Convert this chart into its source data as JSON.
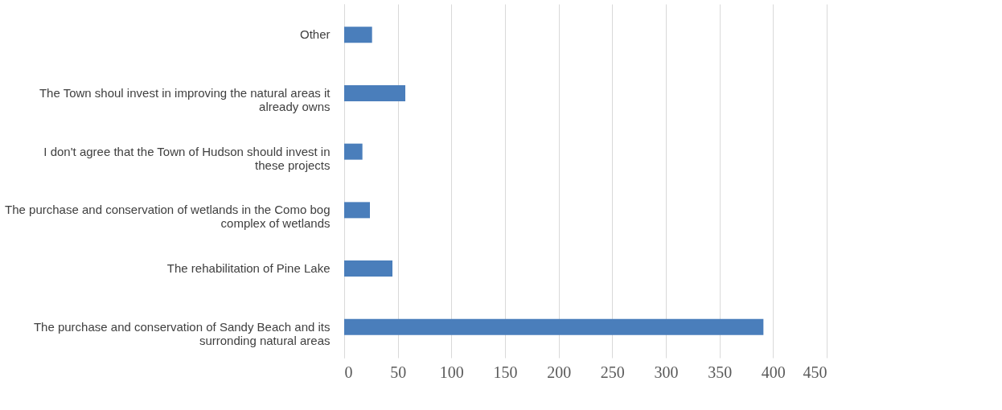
{
  "chart_data": {
    "type": "bar",
    "orientation": "horizontal",
    "categories": [
      "Other",
      "The Town shoul invest in improving the natural areas it already owns",
      "I don't agree that the Town of Hudson should invest in these projects",
      "The purchase and conservation of wetlands in the Como bog complex of wetlands",
      "The rehabilitation of Pine Lake",
      "The purchase and conservation of Sandy Beach and its surronding natural areas"
    ],
    "values": [
      26,
      57,
      17,
      24,
      45,
      391
    ],
    "color": "#4a7ebb",
    "xlim": [
      0,
      450
    ],
    "xticks": [
      0,
      50,
      100,
      150,
      200,
      250,
      300,
      350,
      400,
      450
    ],
    "grid": "x"
  }
}
